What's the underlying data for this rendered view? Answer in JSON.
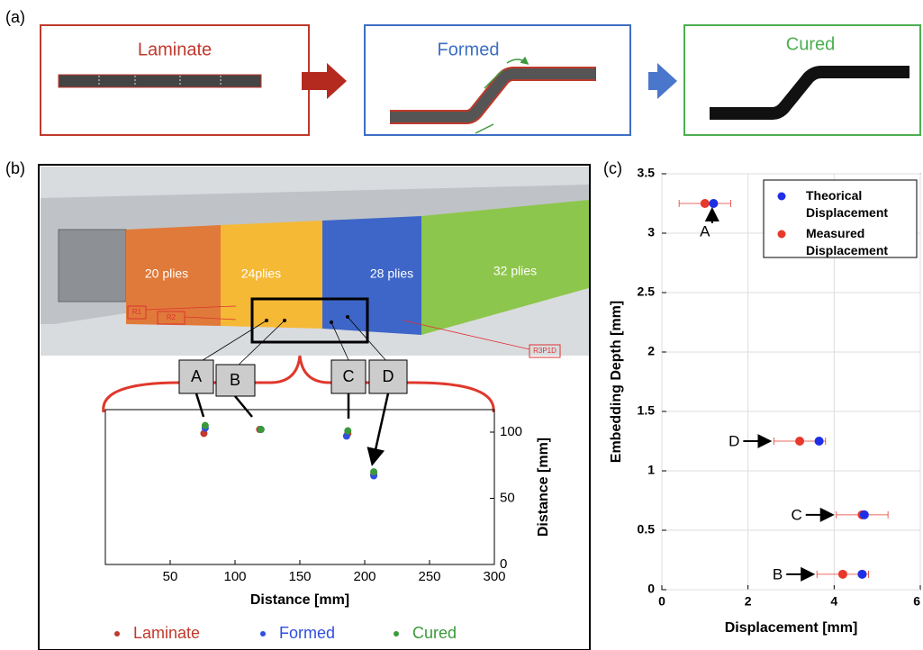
{
  "panels": [
    "(a)",
    "(b)",
    "(c)"
  ],
  "stages": [
    "Laminate",
    "Formed",
    "Cured"
  ],
  "plies": [
    "20 plies",
    "24plies",
    "28 plies",
    "32 plies"
  ],
  "markers": [
    "R1",
    "R2",
    "R3P1D"
  ],
  "callouts": [
    "A",
    "B",
    "C",
    "D"
  ],
  "chart_data": [
    {
      "type": "scatter",
      "xlabel": "Distance [mm]",
      "ylabel": "Distance [mm]",
      "xlim": [
        0,
        300
      ],
      "ylim": [
        0,
        117
      ],
      "xticks": [
        50,
        100,
        150,
        200,
        250,
        300
      ],
      "yticks": [
        0,
        50,
        100
      ],
      "grid": false,
      "legend": "below",
      "series": [
        {
          "name": "Laminate",
          "color": "#c0392b",
          "x": [
            76,
            119,
            187,
            207
          ],
          "values": [
            99,
            102,
            99,
            68
          ]
        },
        {
          "name": "Formed",
          "color": "#2f4fe0",
          "x": [
            77,
            120,
            186,
            207
          ],
          "values": [
            103,
            102,
            97,
            67
          ]
        },
        {
          "name": "Cured",
          "color": "#3a9a3a",
          "x": [
            77,
            120,
            187,
            207
          ],
          "values": [
            105,
            102,
            101,
            70
          ]
        }
      ]
    },
    {
      "type": "scatter",
      "xlabel": "Displacement [mm]",
      "ylabel": "Embedding Depth [mm]",
      "xlim": [
        0,
        6
      ],
      "ylim": [
        0,
        3.5
      ],
      "xticks": [
        0,
        2,
        4,
        6
      ],
      "yticks": [
        0,
        0.5,
        1,
        1.5,
        2,
        2.5,
        3,
        3.5
      ],
      "grid": true,
      "legend": "upper right",
      "annotations": [
        "A",
        "D",
        "C",
        "B"
      ],
      "series": [
        {
          "name": "Measured Displacement",
          "color": "#e8382c",
          "x": [
            1.0,
            3.2,
            4.65,
            4.2
          ],
          "xerr": [
            0.6,
            0.6,
            0.6,
            0.6
          ],
          "values": [
            3.25,
            1.25,
            0.63,
            0.13
          ]
        },
        {
          "name": "Theorical Displacement",
          "color": "#1f2fe6",
          "x": [
            1.2,
            3.65,
            4.7,
            4.65
          ],
          "values": [
            3.25,
            1.25,
            0.63,
            0.13
          ]
        }
      ]
    }
  ]
}
